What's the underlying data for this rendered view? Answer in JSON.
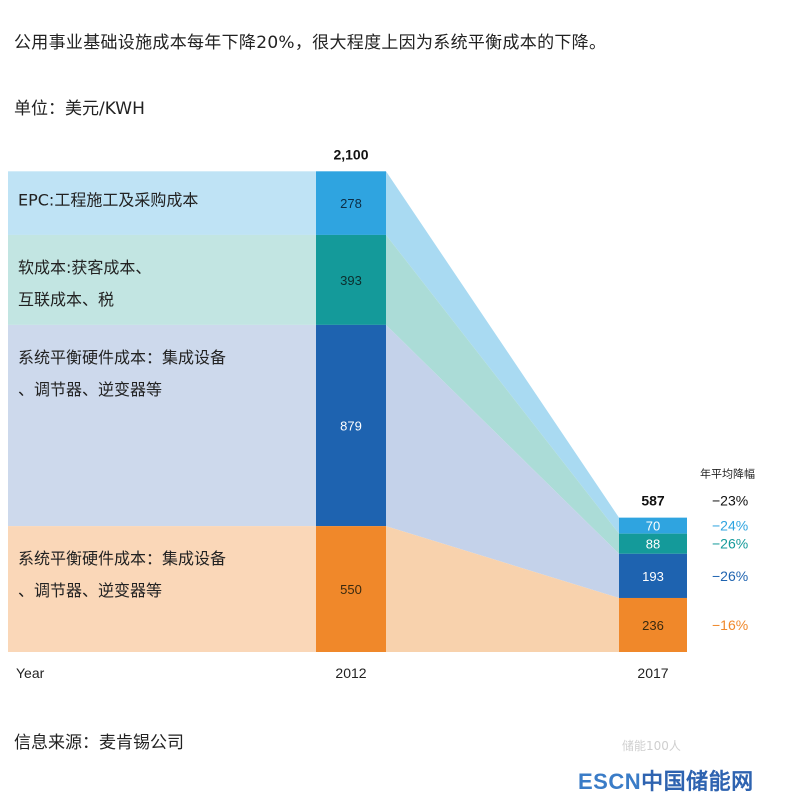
{
  "headline": "公用事业基础设施成本每年下降20%，很大程度上因为系统平衡成本的下降。",
  "unit": "单位：美元/KWH",
  "source": "信息来源：麦肯锡公司",
  "watermark": {
    "part1": "ESCN",
    "part2": "中国储能网"
  },
  "wechat_tag": "储能100人",
  "colors": {
    "epc": "#2fa4e0",
    "soft": "#149a9a",
    "bos_hw": "#1e63b0",
    "other": "#f0882a"
  },
  "chart_data": {
    "type": "bar",
    "stacked": true,
    "x_axis_label": "Year",
    "categories": [
      "2012",
      "2017"
    ],
    "totals": [
      "2,100",
      "587"
    ],
    "series": [
      {
        "name": "EPC:工程施工及采购成本",
        "values": [
          278,
          70
        ],
        "rate": "−24%"
      },
      {
        "name": "软成本:获客成本、互联成本、税",
        "values": [
          393,
          88
        ],
        "rate": "−26%"
      },
      {
        "name": "系统平衡硬件成本：集成设备、调节器、逆变器等",
        "values": [
          879,
          193
        ],
        "rate": "−26%"
      },
      {
        "name": "系统平衡硬件成本：集成设备、调节器、逆变器等",
        "values": [
          550,
          236
        ],
        "rate": "−16%"
      }
    ],
    "category_lines": [
      [
        "EPC:工程施工及采购成本"
      ],
      [
        "软成本:获客成本、",
        "互联成本、税"
      ],
      [
        "系统平衡硬件成本：集成设备",
        "、调节器、逆变器等"
      ],
      [
        "系统平衡硬件成本：集成设备",
        "、调节器、逆变器等"
      ]
    ],
    "rate_header": "年平均降幅",
    "total_rate": "−23%"
  }
}
